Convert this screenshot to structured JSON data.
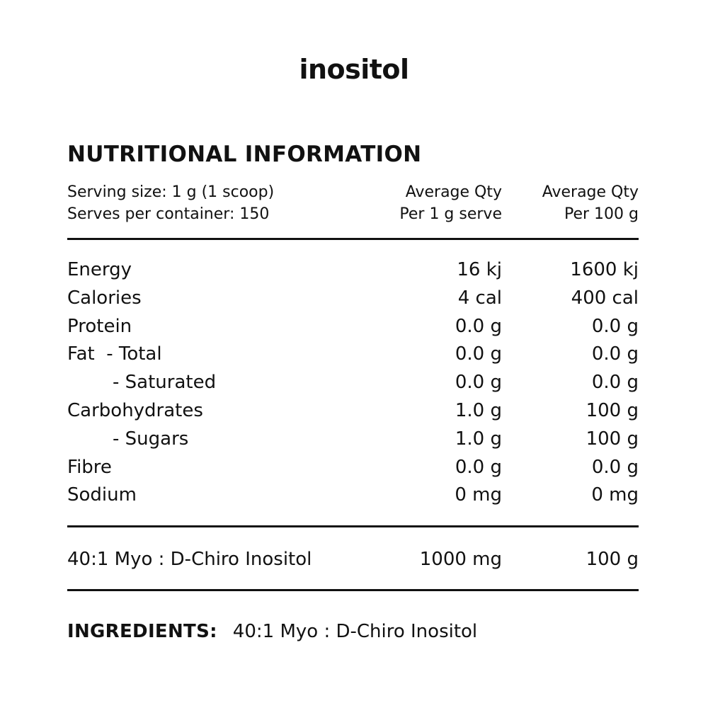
{
  "brand": "inositol",
  "title": "NUTRITIONAL INFORMATION",
  "header": {
    "serving_size": "Serving size: 1 g (1 scoop)",
    "serves_per_container": "Serves per container: 150",
    "col1_line1": "Average Qty",
    "col1_line2": "Per 1 g serve",
    "col2_line1": "Average Qty",
    "col2_line2": "Per 100 g"
  },
  "rows": [
    {
      "label": "Energy",
      "per_serve": "16 kj",
      "per_100g": "1600 kj"
    },
    {
      "label": "Calories",
      "per_serve": "4 cal",
      "per_100g": "400 cal"
    },
    {
      "label": "Protein",
      "per_serve": "0.0 g",
      "per_100g": "0.0 g"
    },
    {
      "label": "Fat  - Total",
      "per_serve": "0.0 g",
      "per_100g": "0.0 g"
    },
    {
      "label": "- Saturated",
      "per_serve": "0.0 g",
      "per_100g": "0.0 g"
    },
    {
      "label": "Carbohydrates",
      "per_serve": "1.0 g",
      "per_100g": "100 g"
    },
    {
      "label": "- Sugars",
      "per_serve": "1.0 g",
      "per_100g": "100 g"
    },
    {
      "label": "Fibre",
      "per_serve": "0.0 g",
      "per_100g": "0.0 g"
    },
    {
      "label": "Sodium",
      "per_serve": "0 mg",
      "per_100g": "0 mg"
    }
  ],
  "active": {
    "label": "40:1 Myo : D-Chiro Inositol",
    "per_serve": "1000 mg",
    "per_100g": "100 g"
  },
  "ingredients": {
    "label": "INGREDIENTS:",
    "text": "40:1 Myo : D-Chiro Inositol"
  }
}
